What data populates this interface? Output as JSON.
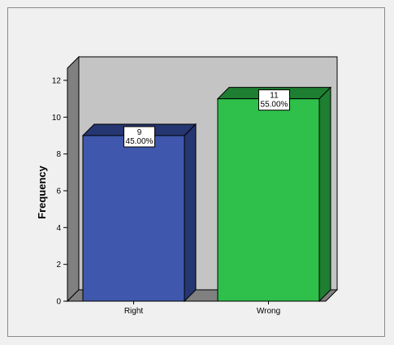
{
  "chart_data": {
    "type": "bar",
    "categories": [
      "Right",
      "Wrong"
    ],
    "values": [
      9,
      11
    ],
    "percent_labels": [
      "45.00%",
      "55.00%"
    ],
    "value_labels": [
      "9",
      "11"
    ],
    "title": "",
    "xlabel": "",
    "ylabel": "Frequency",
    "ylim": [
      0,
      12
    ],
    "yticks": [
      "0",
      "2",
      "4",
      "6",
      "8",
      "10",
      "12"
    ],
    "style": "3d",
    "bar_colors": [
      "#3f58ad",
      "#2ec04a"
    ],
    "bar_side_colors": [
      "#253671",
      "#1e7e31"
    ],
    "plot_back_color": "#c4c4c4",
    "floor_color": "#808080",
    "grid": false
  }
}
